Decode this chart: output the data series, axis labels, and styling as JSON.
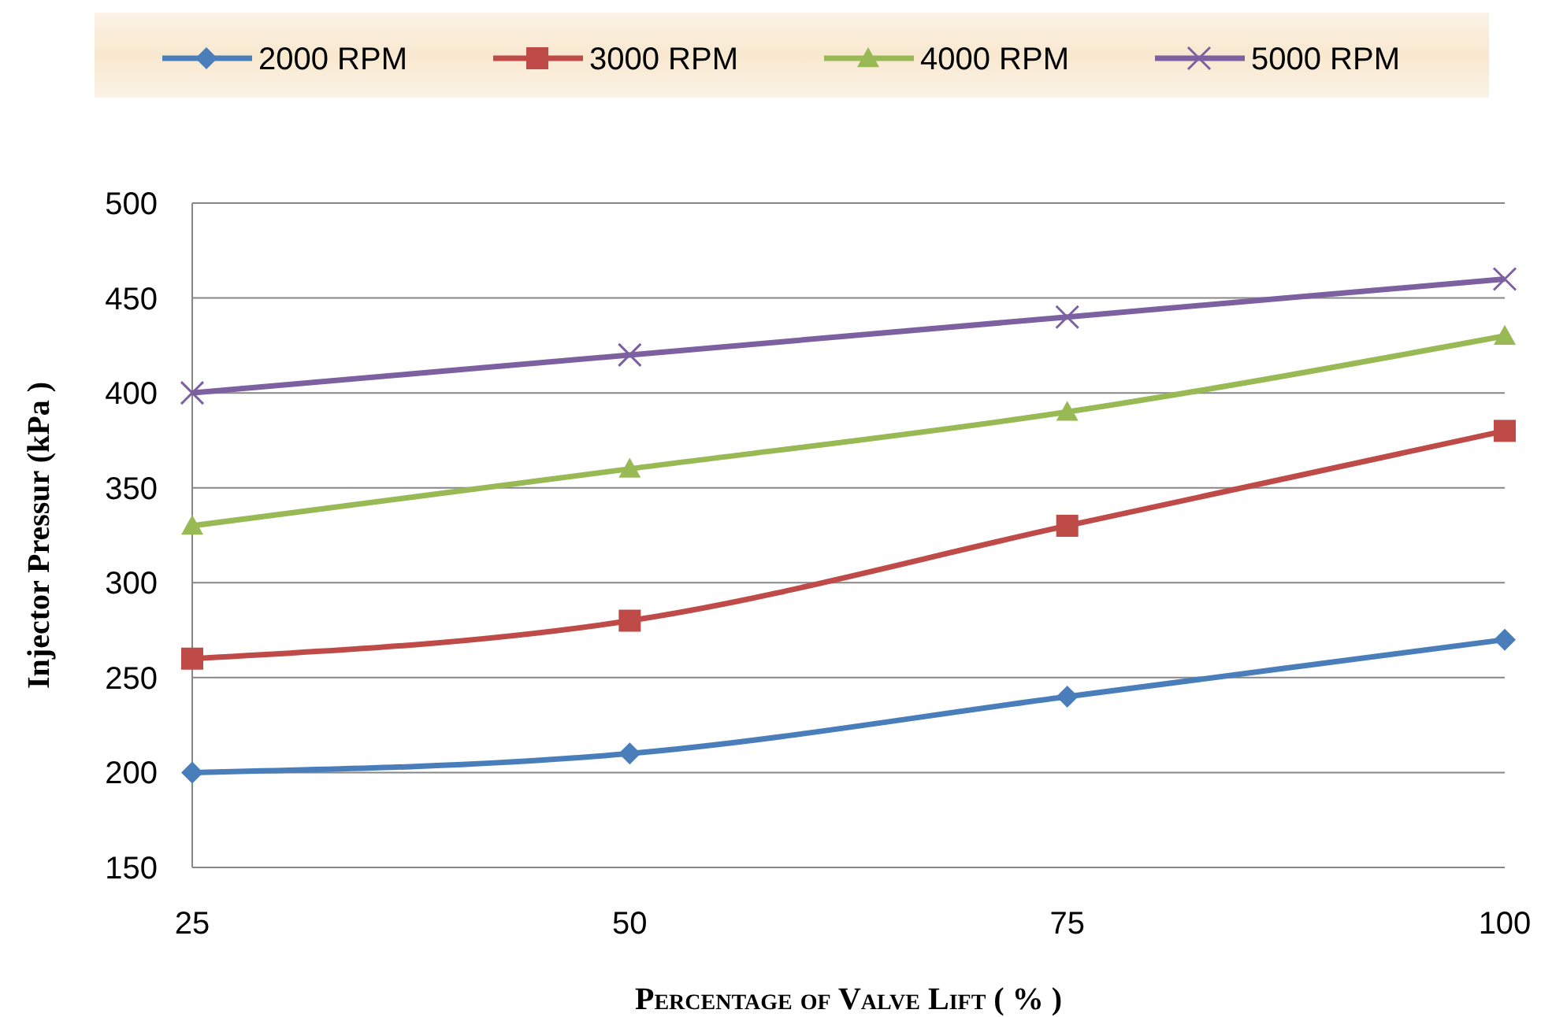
{
  "chart_data": {
    "type": "line",
    "xlabel": "Percentage of Valve Lift ( % )",
    "ylabel": "Injector Pressur (kPa )",
    "x": [
      25,
      50,
      75,
      100
    ],
    "xlim": [
      25,
      100
    ],
    "xticks": [
      25,
      50,
      75,
      100
    ],
    "ylim": [
      150,
      500
    ],
    "yticks": [
      150,
      200,
      250,
      300,
      350,
      400,
      450,
      500
    ],
    "grid": "y",
    "legend": "top",
    "series": [
      {
        "name": "2000 RPM",
        "color": "#4a7ebb",
        "marker": "diamond",
        "values": [
          200,
          210,
          240,
          270
        ]
      },
      {
        "name": "3000 RPM",
        "color": "#be4b48",
        "marker": "square",
        "values": [
          260,
          280,
          330,
          380
        ]
      },
      {
        "name": "4000 RPM",
        "color": "#98b954",
        "marker": "triangle",
        "values": [
          330,
          360,
          390,
          430
        ]
      },
      {
        "name": "5000 RPM",
        "color": "#7d60a0",
        "marker": "cross",
        "values": [
          400,
          420,
          440,
          460
        ]
      }
    ]
  }
}
